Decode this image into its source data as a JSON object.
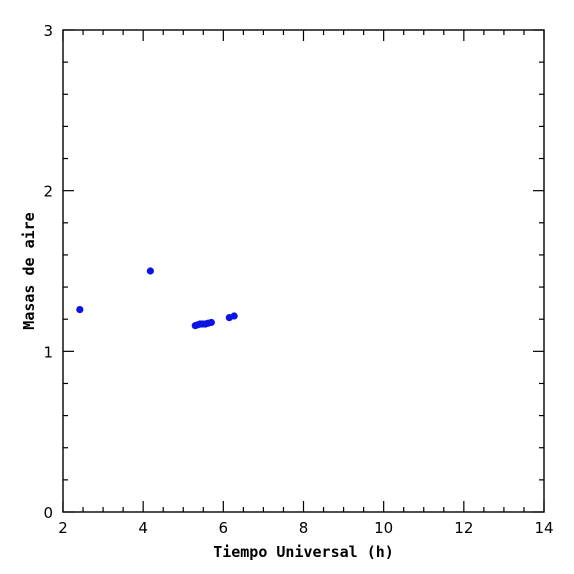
{
  "chart_data": {
    "type": "scatter",
    "title": "",
    "xlabel": "Tiempo Universal (h)",
    "ylabel": "Masas de aire",
    "xlim": [
      2,
      14
    ],
    "ylim": [
      0,
      3
    ],
    "xticks": [
      "2",
      "4",
      "6",
      "8",
      "10",
      "12",
      "14"
    ],
    "yticks": [
      "0",
      "1",
      "2",
      "3"
    ],
    "grid": false,
    "legend": "none",
    "point_color": "#0a14e6",
    "points": [
      {
        "x": 2.42,
        "y": 1.26
      },
      {
        "x": 4.18,
        "y": 1.5
      },
      {
        "x": 5.3,
        "y": 1.16
      },
      {
        "x": 5.36,
        "y": 1.165
      },
      {
        "x": 5.42,
        "y": 1.17
      },
      {
        "x": 5.48,
        "y": 1.17
      },
      {
        "x": 5.55,
        "y": 1.17
      },
      {
        "x": 5.62,
        "y": 1.175
      },
      {
        "x": 5.7,
        "y": 1.18
      },
      {
        "x": 6.15,
        "y": 1.21
      },
      {
        "x": 6.27,
        "y": 1.22
      }
    ]
  }
}
